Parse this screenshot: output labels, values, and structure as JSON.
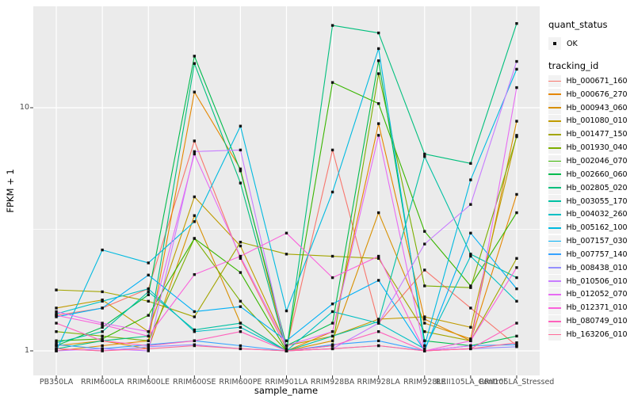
{
  "figure": {
    "y_axis_label": "FPKM + 1",
    "x_axis_label": "sample_name",
    "legend": {
      "quant_status_title": "quant_status",
      "quant_status_ok_label": "OK",
      "tracking_id_title": "tracking_id"
    },
    "colors": {
      "panel_background": "#EBEBEB",
      "gridline": "#FFFFFF",
      "tick_text": "#4D4D4D",
      "point": "#111111",
      "legend_key_background": "#F2F2F2"
    }
  },
  "chart_data": {
    "type": "line",
    "title": "",
    "xlabel": "sample_name",
    "ylabel": "FPKM + 1",
    "y_scale": "log10",
    "ylim": [
      0.95,
      26
    ],
    "grid": true,
    "legend_position": "right",
    "point_style": "small black square marker (quant_status = OK)",
    "y_ticks": [
      {
        "label": "10",
        "value": 10
      },
      {
        "label": "1",
        "value": 1
      }
    ],
    "y_minor_gridlines": [
      3.1623
    ],
    "x": [
      "PB350LA",
      "RRIM600LA",
      "RRIM600LE",
      "RRIM600SE",
      "RRIM600PE",
      "RRIM901LA",
      "RRIM928BA",
      "RRIM928LA",
      "RRIM928LE",
      "RRII105LA_Control",
      "RRII105LA_Stressed"
    ],
    "series": [
      {
        "name": "Hb_000671_160",
        "color": "#F8766D",
        "values": [
          1.4,
          1.5,
          1.8,
          7.3,
          2.4,
          1.02,
          6.7,
          1.3,
          2.15,
          1.5,
          1.05
        ]
      },
      {
        "name": "Hb_000676_270",
        "color": "#E58700",
        "values": [
          1.0,
          1.05,
          1.1,
          11.6,
          5.6,
          1.0,
          1.2,
          8.6,
          1.35,
          1.1,
          4.4
        ]
      },
      {
        "name": "Hb_000943_060",
        "color": "#D89000",
        "values": [
          1.05,
          1.1,
          1.02,
          3.6,
          1.3,
          1.0,
          1.1,
          3.7,
          1.3,
          1.12,
          8.8
        ]
      },
      {
        "name": "Hb_001080_010",
        "color": "#C09B00",
        "values": [
          1.5,
          1.62,
          1.2,
          4.3,
          2.7,
          1.05,
          1.15,
          1.35,
          1.38,
          1.25,
          7.7
        ]
      },
      {
        "name": "Hb_001477_150",
        "color": "#A3A500",
        "values": [
          1.78,
          1.75,
          1.6,
          1.38,
          2.8,
          2.5,
          2.45,
          2.4,
          1.2,
          1.1,
          2.4
        ]
      },
      {
        "name": "Hb_001930_040",
        "color": "#7CAE00",
        "values": [
          1.2,
          1.15,
          1.1,
          2.9,
          1.6,
          1.0,
          1.05,
          13.8,
          1.85,
          1.82,
          7.6
        ]
      },
      {
        "name": "Hb_002046_070",
        "color": "#39B600",
        "values": [
          1.1,
          1.12,
          1.4,
          2.9,
          2.1,
          1.0,
          12.7,
          10.4,
          3.1,
          1.85,
          3.7
        ]
      },
      {
        "name": "Hb_002660_060",
        "color": "#00BB4E",
        "values": [
          1.05,
          1.25,
          1.7,
          16.3,
          5.5,
          1.05,
          1.3,
          15.6,
          1.1,
          1.05,
          1.15
        ]
      },
      {
        "name": "Hb_002805_020",
        "color": "#00BF7D",
        "values": [
          1.02,
          1.1,
          1.15,
          15.2,
          4.9,
          1.0,
          21.8,
          20.3,
          6.45,
          5.9,
          22.2
        ]
      },
      {
        "name": "Hb_003055_170",
        "color": "#00C1A3",
        "values": [
          1.08,
          1.2,
          1.75,
          1.22,
          1.3,
          1.0,
          1.15,
          1.32,
          6.3,
          2.5,
          2.0
        ]
      },
      {
        "name": "Hb_004032_260",
        "color": "#00BFC4",
        "values": [
          1.42,
          1.6,
          1.8,
          1.2,
          1.25,
          1.0,
          1.45,
          1.3,
          1.02,
          2.45,
          1.6
        ]
      },
      {
        "name": "Hb_005162_100",
        "color": "#00BAE0",
        "values": [
          1.0,
          2.6,
          2.3,
          3.4,
          8.4,
          1.46,
          4.5,
          17.5,
          1.05,
          5.05,
          14.4
        ]
      },
      {
        "name": "Hb_007157_030",
        "color": "#00B0F6",
        "values": [
          1.38,
          1.5,
          2.05,
          1.45,
          1.52,
          1.1,
          1.56,
          1.95,
          1.0,
          3.05,
          1.8
        ]
      },
      {
        "name": "Hb_007757_140",
        "color": "#35A2FF",
        "values": [
          1.06,
          1.02,
          1.06,
          1.1,
          1.05,
          1.0,
          1.06,
          1.1,
          1.0,
          1.05,
          1.06
        ]
      },
      {
        "name": "Hb_008438_010",
        "color": "#9590FF",
        "values": [
          1.02,
          1.0,
          1.04,
          1.06,
          1.02,
          1.0,
          1.02,
          1.05,
          1.0,
          1.02,
          1.04
        ]
      },
      {
        "name": "Hb_010506_010",
        "color": "#C77CFF",
        "values": [
          1.0,
          1.02,
          1.0,
          6.6,
          6.7,
          1.0,
          1.02,
          1.3,
          2.75,
          4.0,
          15.5
        ]
      },
      {
        "name": "Hb_012052_070",
        "color": "#E76BF3",
        "values": [
          1.45,
          1.3,
          1.2,
          6.45,
          2.44,
          1.05,
          1.2,
          7.7,
          1.0,
          1.05,
          12.1
        ]
      },
      {
        "name": "Hb_012371_010",
        "color": "#FA62DB",
        "values": [
          1.4,
          1.28,
          1.15,
          2.06,
          2.45,
          3.05,
          2.0,
          2.45,
          1.0,
          1.1,
          2.2
        ]
      },
      {
        "name": "Hb_080749_010",
        "color": "#FF62BC",
        "values": [
          1.3,
          1.1,
          1.05,
          1.1,
          1.2,
          1.0,
          1.05,
          1.2,
          1.0,
          1.02,
          1.3
        ]
      },
      {
        "name": "Hb_163206_010",
        "color": "#FF6A98",
        "values": [
          1.02,
          1.0,
          1.02,
          1.05,
          1.02,
          1.0,
          1.02,
          1.05,
          1.0,
          1.02,
          1.08
        ]
      }
    ]
  }
}
